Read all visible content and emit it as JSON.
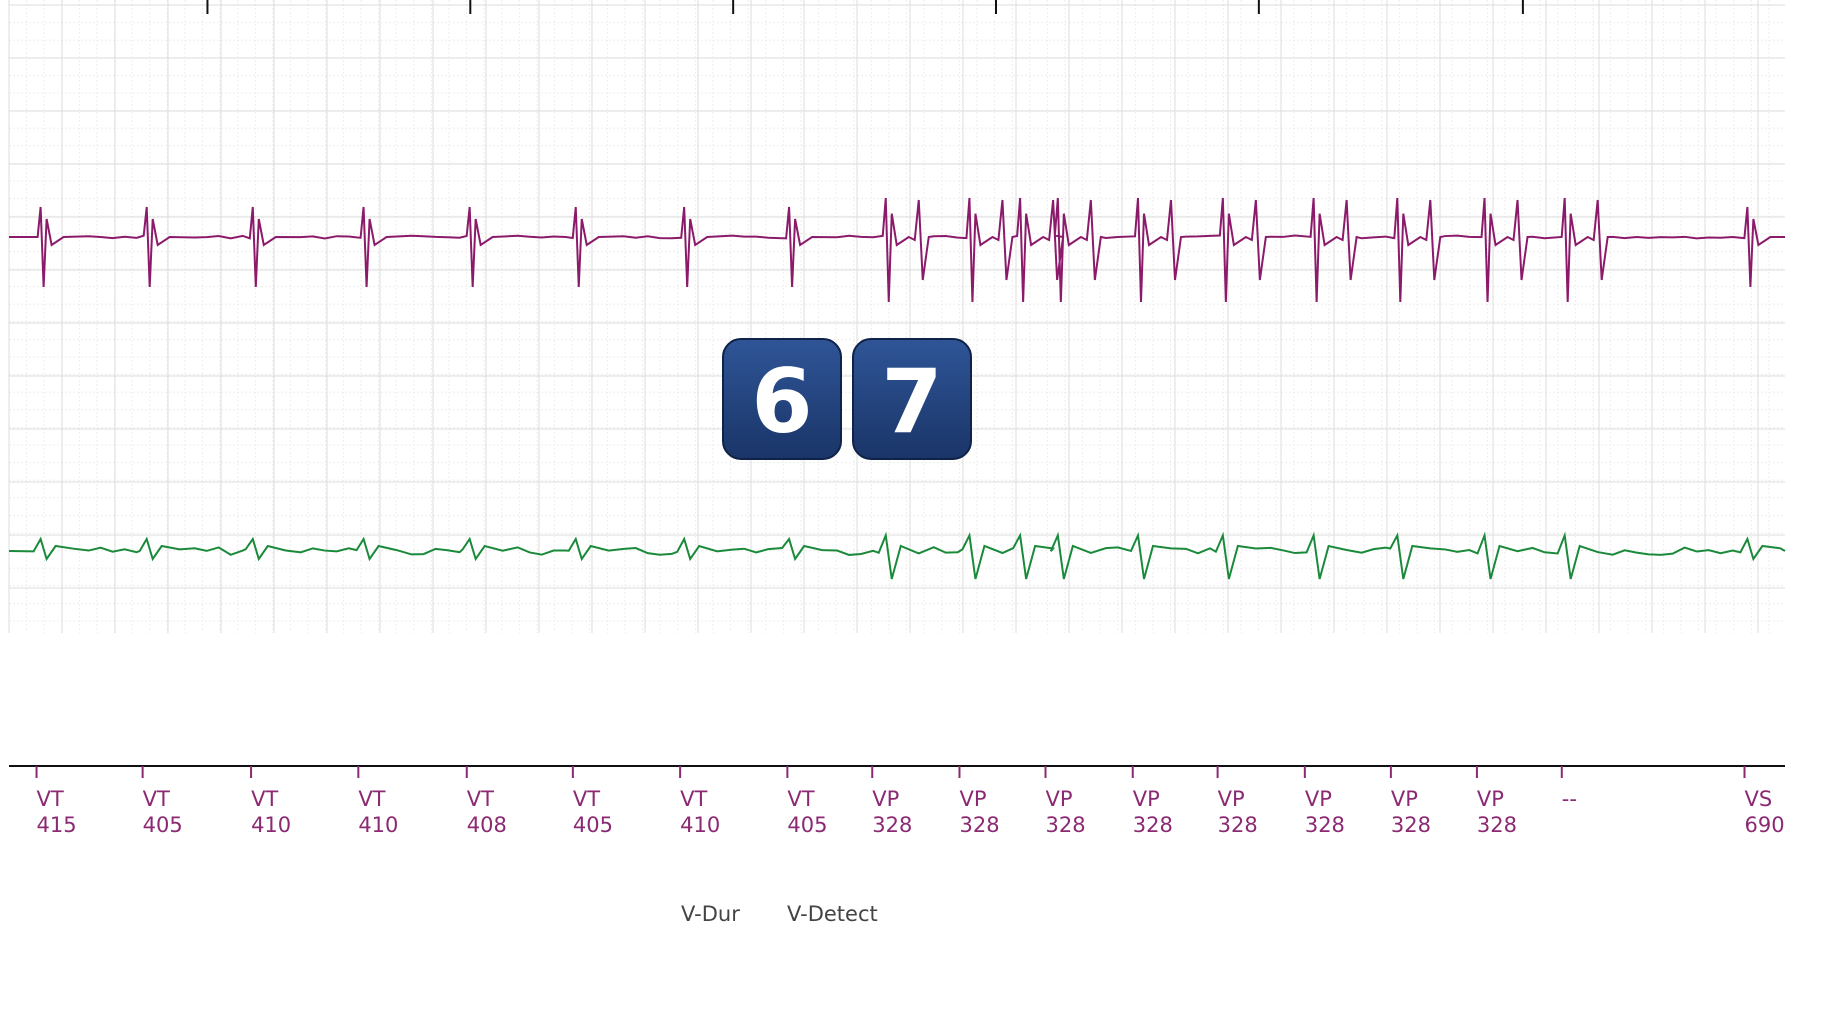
{
  "badges": [
    "6",
    "7"
  ],
  "markers": [
    {
      "label": "VT",
      "interval": "415"
    },
    {
      "label": "VT",
      "interval": "405"
    },
    {
      "label": "VT",
      "interval": "410"
    },
    {
      "label": "VT",
      "interval": "410"
    },
    {
      "label": "VT",
      "interval": "408"
    },
    {
      "label": "VT",
      "interval": "405"
    },
    {
      "label": "VT",
      "interval": "410"
    },
    {
      "label": "VT",
      "interval": "405"
    },
    {
      "label": "VP",
      "interval": "328"
    },
    {
      "label": "VP",
      "interval": "328"
    },
    {
      "label": "VP",
      "interval": "328"
    },
    {
      "label": "VP",
      "interval": "328"
    },
    {
      "label": "VP",
      "interval": "328"
    },
    {
      "label": "VP",
      "interval": "328"
    },
    {
      "label": "VP",
      "interval": "328"
    },
    {
      "label": "VP",
      "interval": "328"
    },
    {
      "label": "--",
      "interval": ""
    },
    {
      "label": "VS",
      "interval": "690"
    }
  ],
  "annotations": [
    "V-Dur",
    "V-Detect"
  ]
}
